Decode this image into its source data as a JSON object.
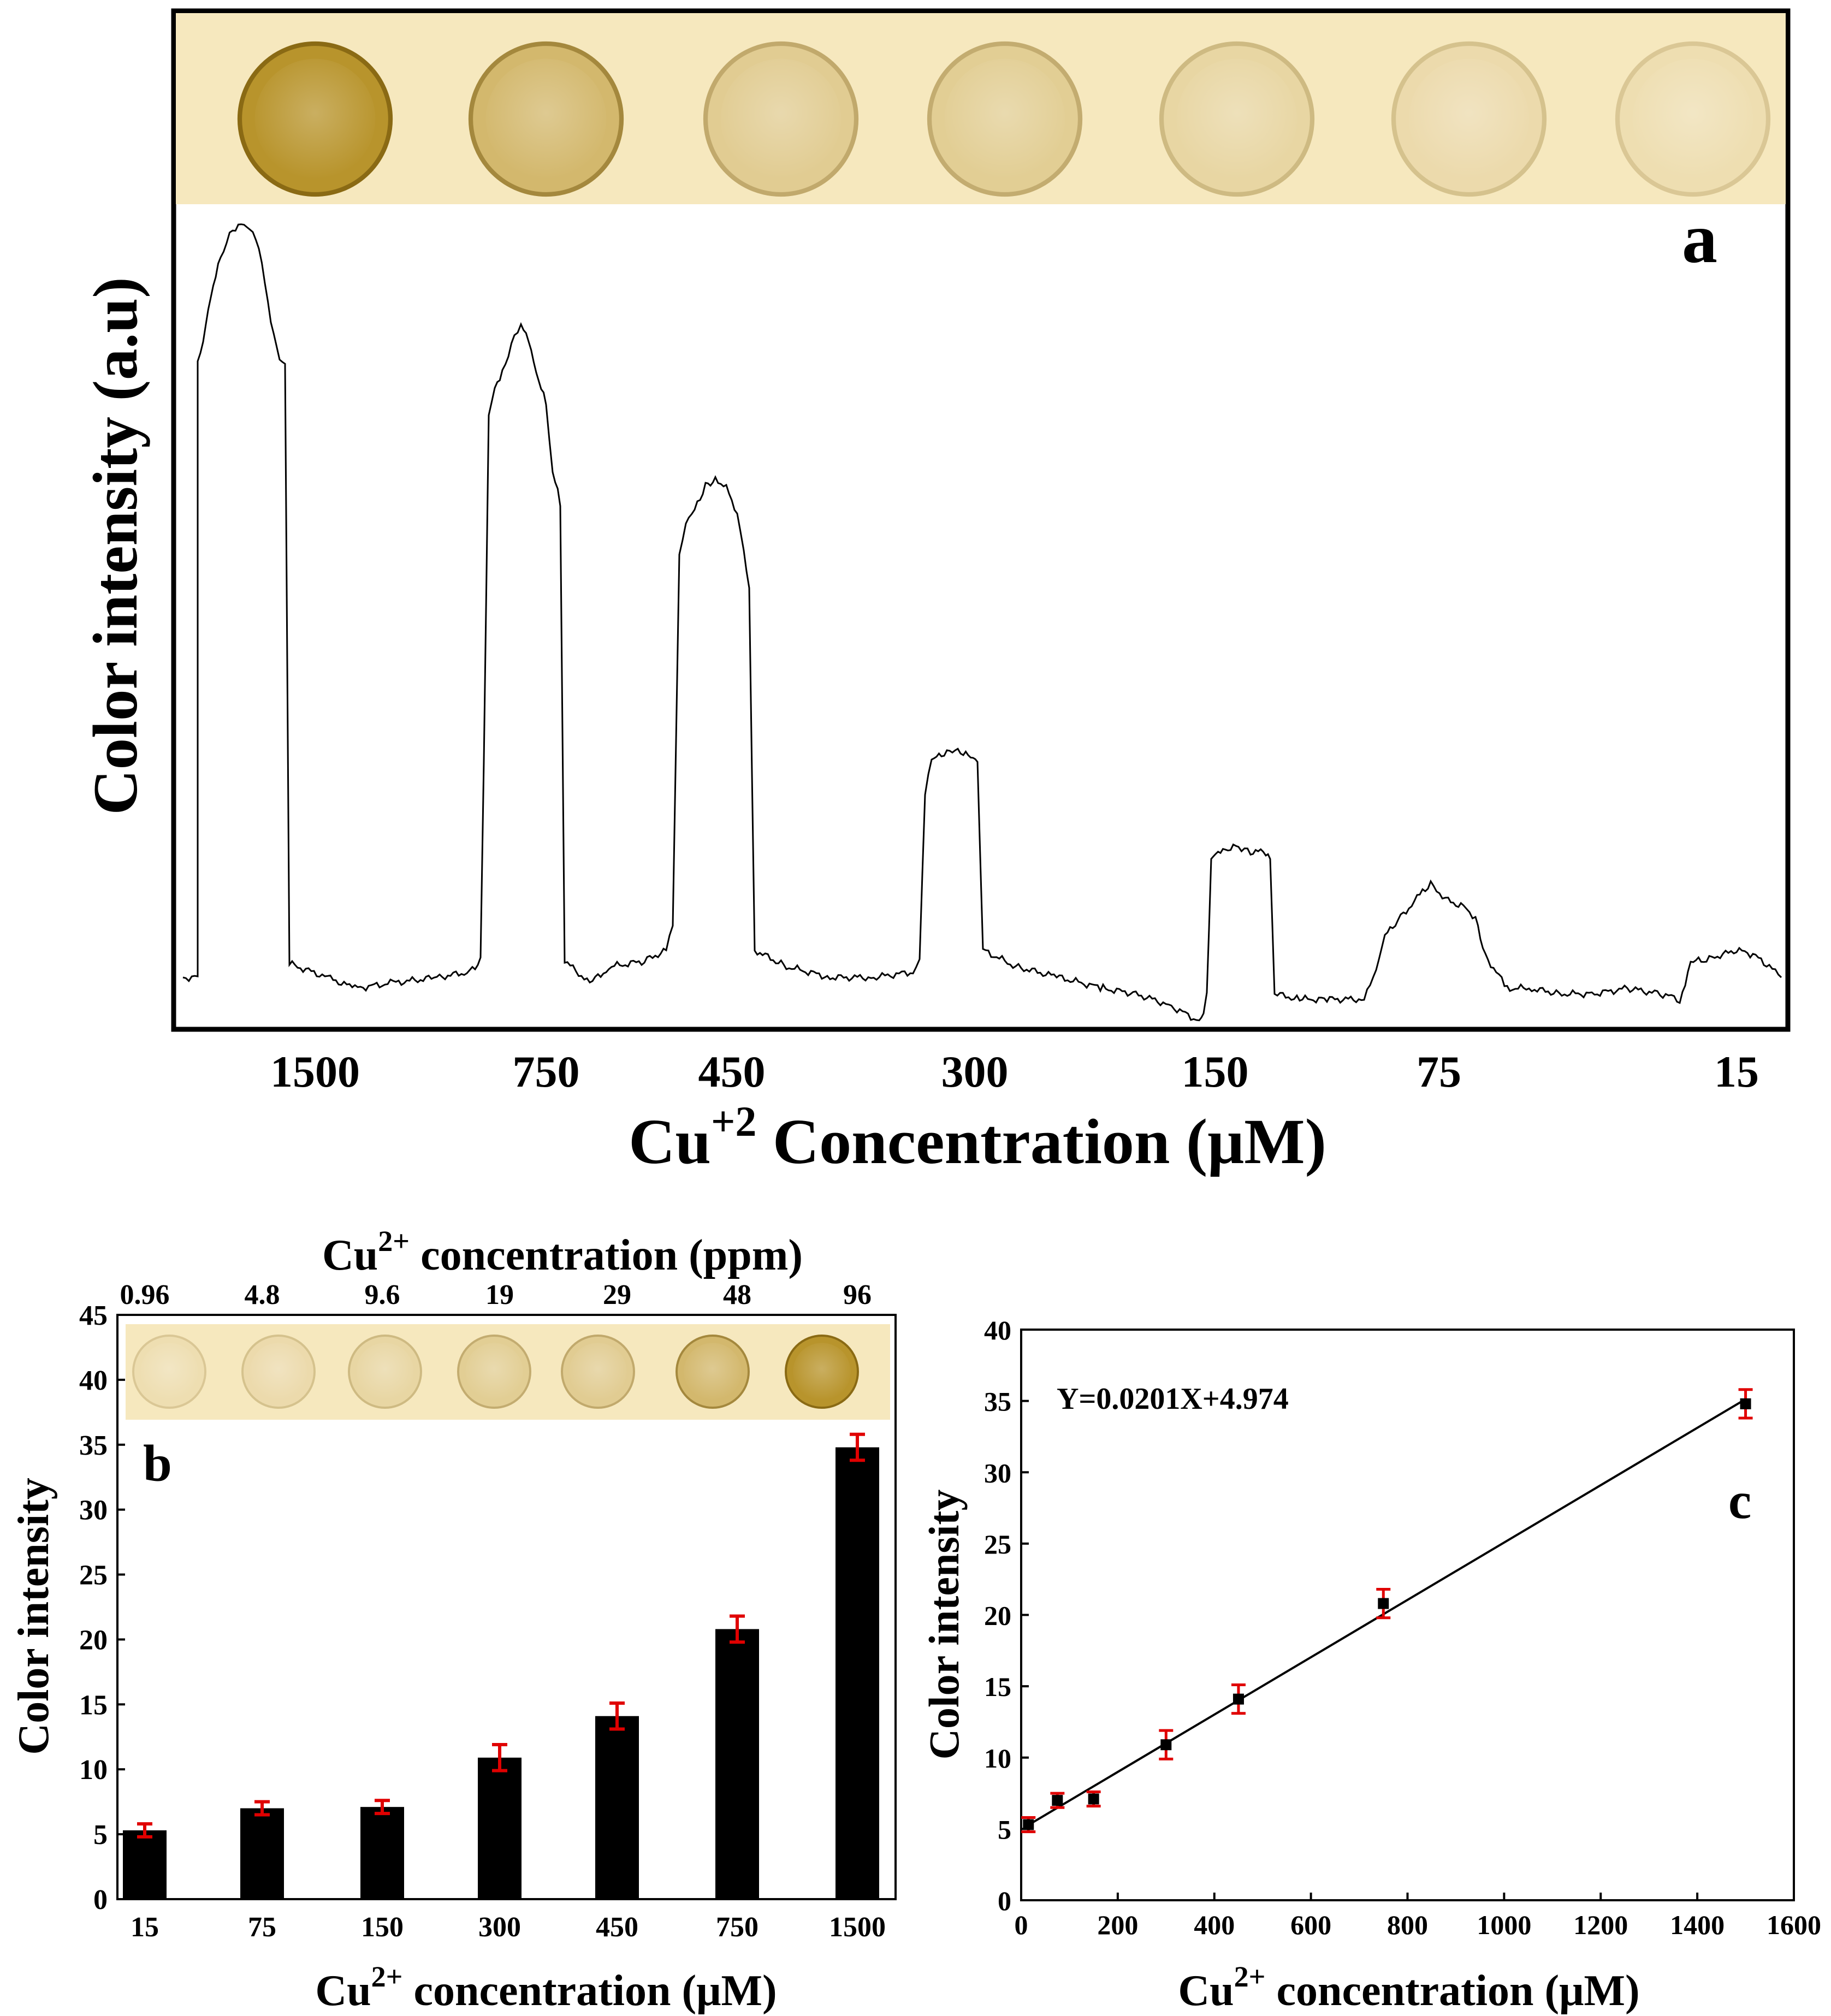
{
  "chart_data": [
    {
      "type": "line",
      "panel_label": "a",
      "title": "",
      "xlabel": "Cu+2 Concentration (μM)",
      "xlabel_base": "Cu",
      "xlabel_sup": "+2",
      "xlabel_rest": " Concentration (μM)",
      "ylabel": "Color intensity (a.u)",
      "categories": [
        "1500",
        "750",
        "450",
        "300",
        "150",
        "75",
        "15"
      ],
      "relative_peak_heights": [
        1.0,
        0.87,
        0.66,
        0.31,
        0.18,
        0.12,
        0.05
      ],
      "y_ticks_shown": false,
      "grid": false,
      "legend": "none",
      "strip_spot_intensity": [
        1.0,
        0.55,
        0.3,
        0.28,
        0.18,
        0.12,
        0.08
      ]
    },
    {
      "type": "bar",
      "panel_label": "b",
      "title": "",
      "xlabel": "Cu2+ concentration (μM)",
      "xlabel_base": "Cu",
      "xlabel_sup": "2+",
      "xlabel_rest": " concentration (μM)",
      "ylabel": "Color intensity",
      "top_axis_label": "Cu2+ concentration (ppm)",
      "top_axis_base": "Cu",
      "top_axis_sup": "2+",
      "top_axis_rest": " concentration (ppm)",
      "categories": [
        "15",
        "75",
        "150",
        "300",
        "450",
        "750",
        "1500"
      ],
      "top_categories": [
        "0.96",
        "4.8",
        "9.6",
        "19",
        "29",
        "48",
        "96"
      ],
      "values": [
        5.3,
        7.0,
        7.1,
        10.9,
        14.1,
        20.8,
        34.8
      ],
      "errors": [
        0.5,
        0.5,
        0.5,
        1.0,
        1.0,
        1.0,
        1.0
      ],
      "ylim": [
        0,
        45
      ],
      "yticks": [
        "0",
        "5",
        "10",
        "15",
        "20",
        "25",
        "30",
        "35",
        "40",
        "45"
      ],
      "strip_spot_intensity": [
        0.08,
        0.12,
        0.18,
        0.28,
        0.3,
        0.55,
        1.0
      ],
      "grid": false,
      "legend": "none"
    },
    {
      "type": "scatter",
      "panel_label": "c",
      "title": "",
      "xlabel": "Cu2+ concentration (μM)",
      "xlabel_base": "Cu",
      "xlabel_sup": "2+",
      "xlabel_rest": " concentration (μM)",
      "ylabel": "Color intensity",
      "x": [
        15,
        75,
        150,
        300,
        450,
        750,
        1500
      ],
      "y": [
        5.3,
        7.0,
        7.1,
        10.9,
        14.1,
        20.8,
        34.8
      ],
      "errors": [
        0.5,
        0.5,
        0.5,
        1.0,
        1.0,
        1.0,
        1.0
      ],
      "fit": {
        "slope": 0.0201,
        "intercept": 4.974,
        "label": "Y=0.0201X+4.974"
      },
      "xlim": [
        0,
        1600
      ],
      "ylim": [
        0,
        40
      ],
      "xticks": [
        "0",
        "200",
        "400",
        "600",
        "800",
        "1000",
        "1200",
        "1400",
        "1600"
      ],
      "yticks": [
        "0",
        "5",
        "10",
        "15",
        "20",
        "25",
        "30",
        "35",
        "40"
      ],
      "grid": false,
      "legend": "none"
    }
  ],
  "colors": {
    "strip_background": "#f6e8be",
    "spot_light": "#f3e4bd",
    "spot_dark": "#b8942c",
    "spot_rim": "#8a6a14",
    "bar": "#000000",
    "error_bar": "#e00000",
    "line": "#000000"
  }
}
